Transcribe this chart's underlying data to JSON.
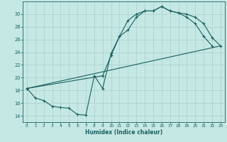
{
  "bg_color": "#c5e8e4",
  "line_color": "#1a6060",
  "grid_color": "#aacfcc",
  "xlabel": "Humidex (Indice chaleur)",
  "xlim": [
    -0.5,
    23.5
  ],
  "ylim": [
    13.0,
    32.0
  ],
  "xticks": [
    0,
    1,
    2,
    3,
    4,
    5,
    6,
    7,
    8,
    9,
    10,
    11,
    12,
    13,
    14,
    15,
    16,
    17,
    18,
    19,
    20,
    21,
    22,
    23
  ],
  "yticks": [
    14,
    16,
    18,
    20,
    22,
    24,
    26,
    28,
    30
  ],
  "line1_x": [
    0,
    1,
    2,
    3,
    4,
    5,
    6,
    7,
    8,
    9,
    10,
    11,
    12,
    13,
    14,
    15,
    16,
    17,
    18,
    19,
    20,
    21,
    22,
    23
  ],
  "line1_y": [
    18.3,
    16.8,
    16.4,
    15.5,
    15.3,
    15.2,
    14.2,
    14.1,
    20.3,
    18.3,
    23.8,
    26.5,
    29.0,
    30.0,
    30.5,
    30.5,
    31.2,
    30.5,
    30.2,
    29.5,
    28.5,
    26.5,
    25.0,
    null
  ],
  "line2_x": [
    0,
    9,
    10,
    11,
    12,
    13,
    14,
    15,
    16,
    17,
    18,
    19,
    20,
    21,
    22,
    23
  ],
  "line2_y": [
    18.3,
    20.3,
    23.5,
    26.5,
    27.5,
    29.5,
    30.5,
    30.5,
    31.2,
    30.5,
    30.2,
    30.0,
    29.5,
    28.5,
    26.3,
    25.0
  ],
  "line3_x": [
    0,
    23
  ],
  "line3_y": [
    18.3,
    25.0
  ]
}
